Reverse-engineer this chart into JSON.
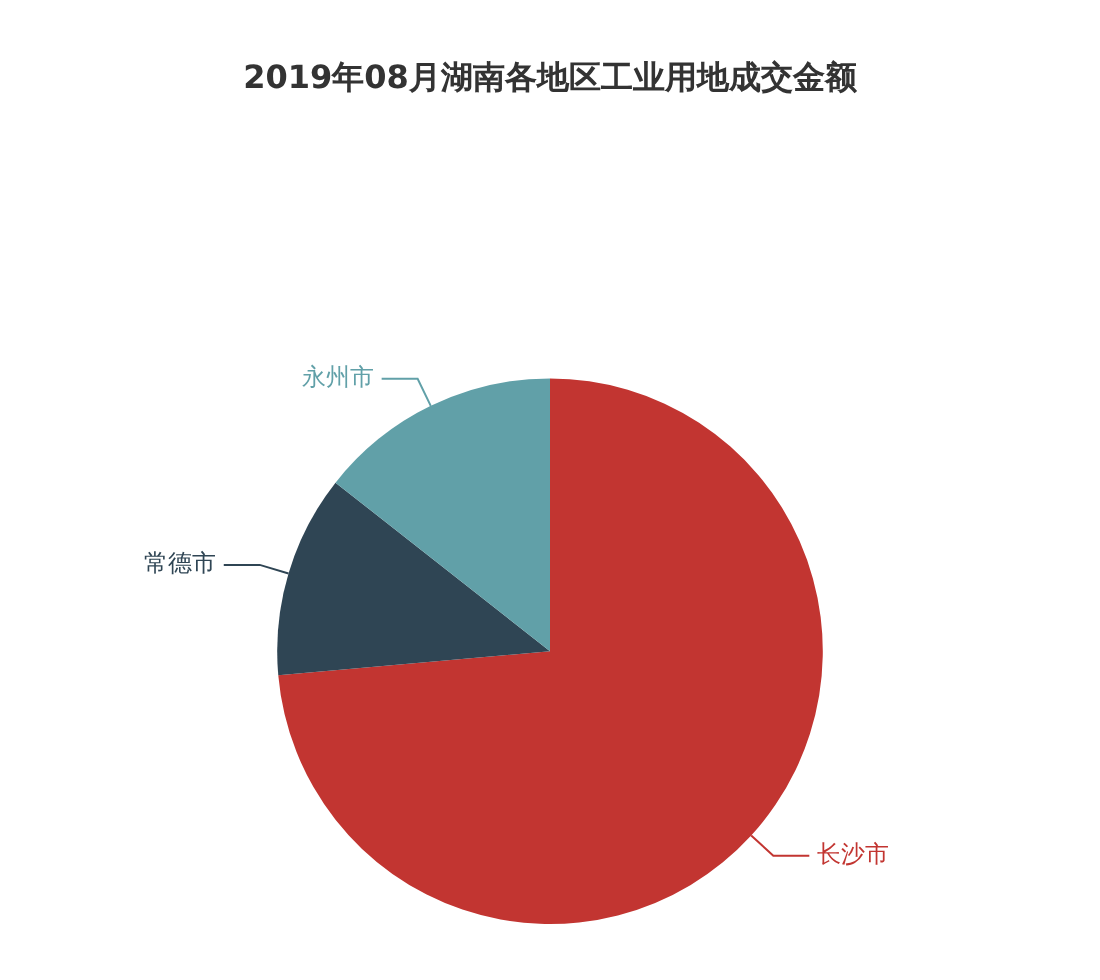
{
  "chart_data": {
    "type": "pie",
    "title": "2019年08月湖南各地区工业用地成交金额",
    "categories": [
      "长沙市",
      "常德市",
      "永州市"
    ],
    "values": [
      73.6,
      12,
      14.4
    ],
    "colors": [
      "#c23531",
      "#2f4554",
      "#61a0a8"
    ],
    "legend": false
  }
}
